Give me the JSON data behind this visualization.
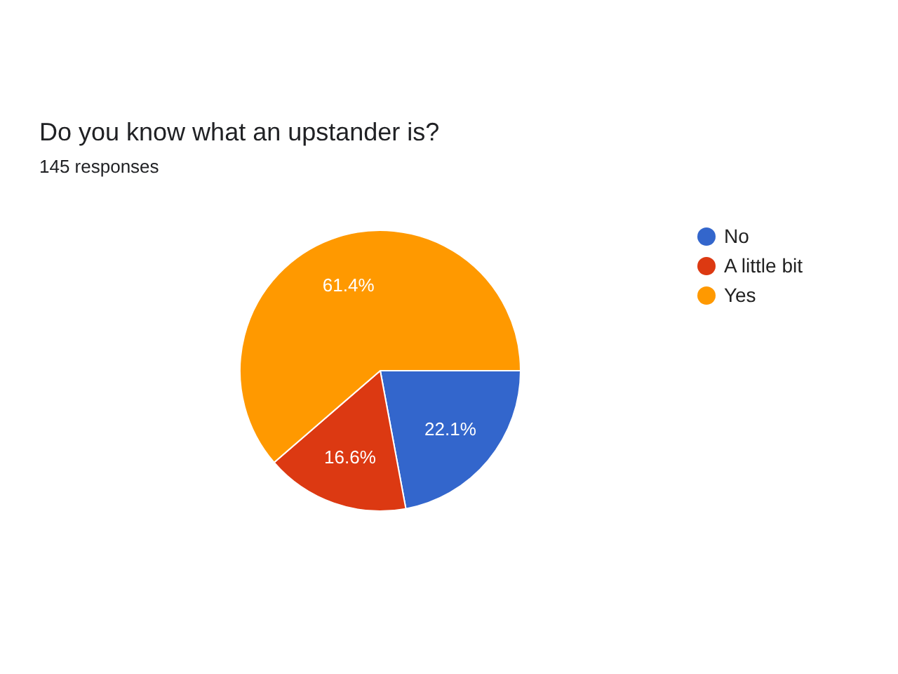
{
  "chart_data": {
    "type": "pie",
    "title": "Do you know what an upstander is?",
    "subtitle": "145 responses",
    "categories": [
      "No",
      "A little bit",
      "Yes"
    ],
    "values": [
      22.1,
      16.6,
      61.4
    ],
    "colors": [
      "#3366cc",
      "#dc3912",
      "#ff9900"
    ],
    "value_labels": [
      "22.1%",
      "16.6%",
      "61.4%"
    ],
    "legend": "top right"
  }
}
